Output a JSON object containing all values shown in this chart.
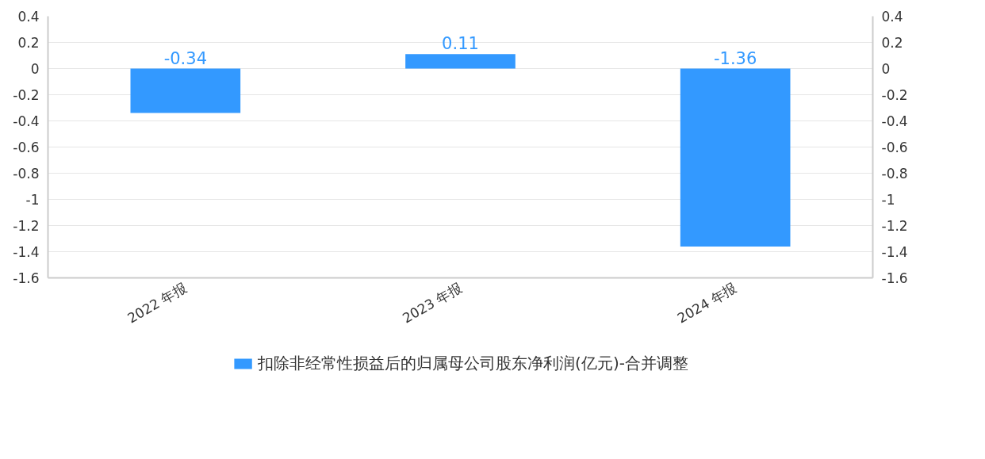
{
  "chart_data": {
    "type": "bar",
    "categories": [
      "2022 年报",
      "2023 年报",
      "2024 年报"
    ],
    "series": [
      {
        "name": "扣除非经常性损益后的归属母公司股东净利润(亿元)-合并调整",
        "color": "#3399ff",
        "values": [
          -0.34,
          0.11,
          -1.36
        ]
      }
    ],
    "ylim": [
      -1.6,
      0.4
    ],
    "yticks": [
      -1.6,
      -1.4,
      -1.2,
      -1,
      -0.8,
      -0.6,
      -0.4,
      -0.2,
      0,
      0.2,
      0.4
    ],
    "y2lim": [
      -1.6,
      0.4
    ],
    "y2ticks": [
      -1.6,
      -1.4,
      -1.2,
      -1,
      -0.8,
      -0.6,
      -0.4,
      -0.2,
      0,
      0.2,
      0.4
    ],
    "data_labels": true,
    "grid": "y",
    "legend": "bottom"
  }
}
